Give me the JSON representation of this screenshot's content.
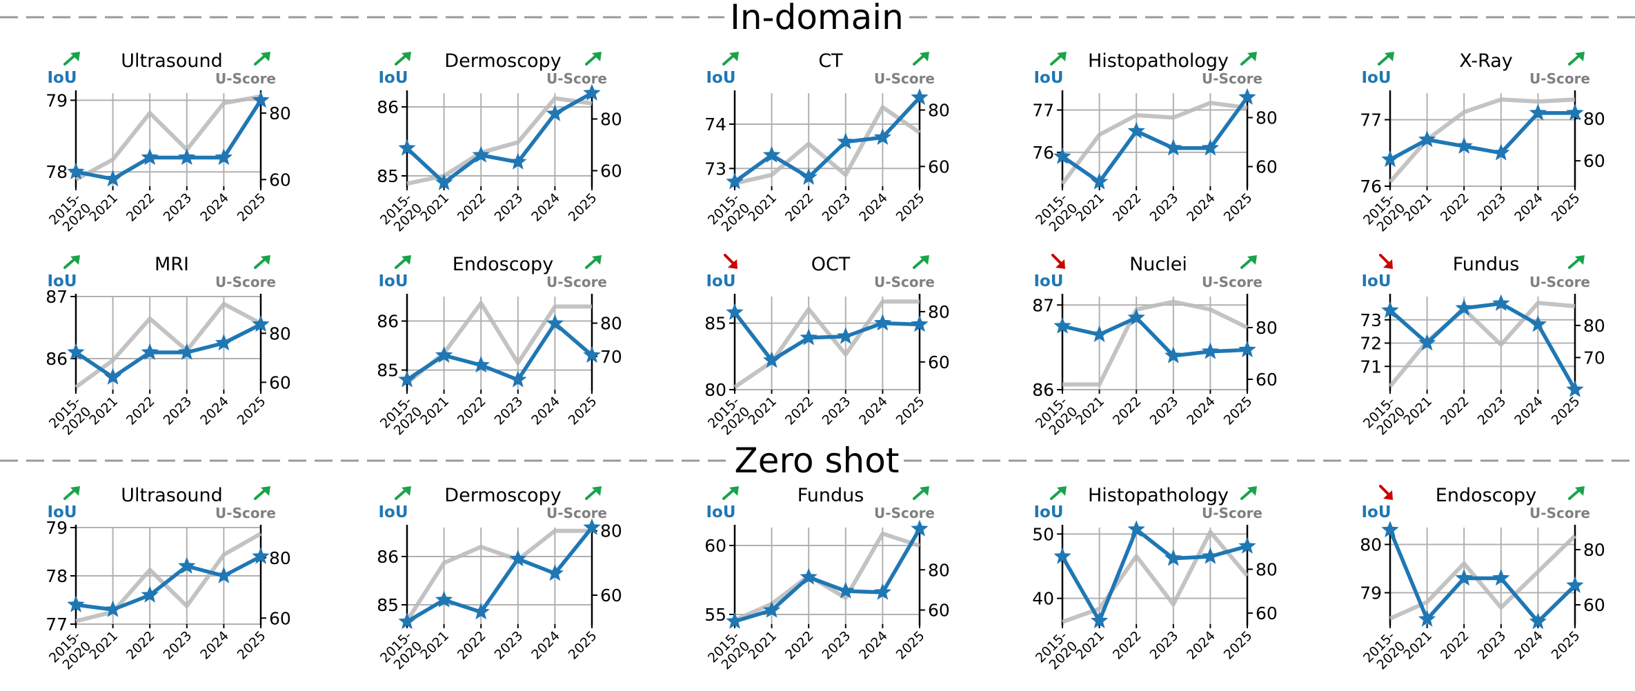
{
  "colors": {
    "iou": "#1f77b4",
    "uscore": "#b9b9b9",
    "up_arrow": "#1aa34a",
    "down_arrow": "#cc0000",
    "grid": "#b0b0b0",
    "divider": "#999999"
  },
  "sections": [
    {
      "title": "In-domain"
    },
    {
      "title": "Zero shot"
    }
  ],
  "chart_data": [
    {
      "type": "line",
      "section": "In-domain",
      "title": "Ultrasound",
      "left_label": "IoU",
      "right_label": "U-Score",
      "iou_trend": "up",
      "uscore_trend": "up",
      "categories": [
        "2015-\n2020",
        "2021",
        "2022",
        "2023",
        "2024",
        "2025"
      ],
      "series": [
        {
          "name": "IoU",
          "axis": "left",
          "values": [
            78.0,
            77.9,
            78.2,
            78.2,
            78.2,
            79.0
          ]
        },
        {
          "name": "U-Score",
          "axis": "right",
          "values": [
            60,
            66,
            80,
            69,
            83,
            85
          ]
        }
      ],
      "ylim_left": [
        77.8,
        79.1
      ],
      "yticks_left": [
        78,
        79
      ],
      "ylim_right": [
        58,
        86
      ],
      "yticks_right": [
        60,
        80
      ]
    },
    {
      "type": "line",
      "section": "In-domain",
      "title": "Dermoscopy",
      "left_label": "IoU",
      "right_label": "U-Score",
      "iou_trend": "up",
      "uscore_trend": "up",
      "categories": [
        "2015-\n2020",
        "2021",
        "2022",
        "2023",
        "2024",
        "2025"
      ],
      "series": [
        {
          "name": "IoU",
          "axis": "left",
          "values": [
            85.4,
            84.9,
            85.3,
            85.2,
            85.9,
            86.2
          ]
        },
        {
          "name": "U-Score",
          "axis": "right",
          "values": [
            55,
            58,
            67,
            71,
            88,
            86
          ]
        }
      ],
      "ylim_left": [
        84.85,
        86.2
      ],
      "yticks_left": [
        85,
        86
      ],
      "ylim_right": [
        54,
        90
      ],
      "yticks_right": [
        60,
        80
      ]
    },
    {
      "type": "line",
      "section": "In-domain",
      "title": "CT",
      "left_label": "IoU",
      "right_label": "U-Score",
      "iou_trend": "up",
      "uscore_trend": "up",
      "categories": [
        "2015-\n2020",
        "2021",
        "2022",
        "2023",
        "2024",
        "2025"
      ],
      "series": [
        {
          "name": "IoU",
          "axis": "left",
          "values": [
            72.7,
            73.3,
            72.8,
            73.6,
            73.7,
            74.6
          ]
        },
        {
          "name": "U-Score",
          "axis": "right",
          "values": [
            54,
            57,
            68,
            57,
            81,
            72
          ]
        }
      ],
      "ylim_left": [
        72.6,
        74.7
      ],
      "yticks_left": [
        73,
        74
      ],
      "ylim_right": [
        53,
        86
      ],
      "yticks_right": [
        60,
        80
      ]
    },
    {
      "type": "line",
      "section": "In-domain",
      "title": "Histopathology",
      "left_label": "IoU",
      "right_label": "U-Score",
      "iou_trend": "up",
      "uscore_trend": "up",
      "categories": [
        "2015-\n2020",
        "2021",
        "2022",
        "2023",
        "2024",
        "2025"
      ],
      "series": [
        {
          "name": "IoU",
          "axis": "left",
          "values": [
            75.9,
            75.3,
            76.5,
            76.1,
            76.1,
            77.3
          ]
        },
        {
          "name": "U-Score",
          "axis": "right",
          "values": [
            53,
            73,
            81,
            80,
            86,
            84
          ]
        }
      ],
      "ylim_left": [
        75.2,
        77.4
      ],
      "yticks_left": [
        76,
        77
      ],
      "ylim_right": [
        52,
        90
      ],
      "yticks_right": [
        60,
        80
      ]
    },
    {
      "type": "line",
      "section": "In-domain",
      "title": "X-Ray",
      "left_label": "IoU",
      "right_label": "U-Score",
      "iou_trend": "up",
      "uscore_trend": "up",
      "categories": [
        "2015-\n2020",
        "2021",
        "2022",
        "2023",
        "2024",
        "2025"
      ],
      "series": [
        {
          "name": "IoU",
          "axis": "left",
          "values": [
            76.4,
            76.7,
            76.6,
            76.5,
            77.1,
            77.1
          ]
        },
        {
          "name": "U-Score",
          "axis": "right",
          "values": [
            50,
            70,
            83,
            89,
            88,
            89
          ]
        }
      ],
      "ylim_left": [
        76,
        77.4
      ],
      "yticks_left": [
        76,
        77
      ],
      "ylim_right": [
        48,
        92
      ],
      "yticks_right": [
        60,
        80
      ]
    },
    {
      "type": "line",
      "section": "In-domain",
      "title": "MRI",
      "left_label": "IoU",
      "right_label": "U-Score",
      "iou_trend": "up",
      "uscore_trend": "up",
      "categories": [
        "2015-\n2020",
        "2021",
        "2022",
        "2023",
        "2024",
        "2025"
      ],
      "series": [
        {
          "name": "IoU",
          "axis": "left",
          "values": [
            86.1,
            85.7,
            86.1,
            86.1,
            86.25,
            86.55
          ]
        },
        {
          "name": "U-Score",
          "axis": "right",
          "values": [
            58,
            69,
            86,
            73,
            92,
            84
          ]
        }
      ],
      "ylim_left": [
        85.5,
        87
      ],
      "yticks_left": [
        86,
        87
      ],
      "ylim_right": [
        57,
        95
      ],
      "yticks_right": [
        60,
        80
      ]
    },
    {
      "type": "line",
      "section": "In-domain",
      "title": "Endoscopy",
      "left_label": "IoU",
      "right_label": "U-Score",
      "iou_trend": "up",
      "uscore_trend": "up",
      "categories": [
        "2015-\n2020",
        "2021",
        "2022",
        "2023",
        "2024",
        "2025"
      ],
      "series": [
        {
          "name": "IoU",
          "axis": "left",
          "values": [
            84.8,
            85.3,
            85.1,
            84.8,
            85.95,
            85.3
          ]
        },
        {
          "name": "U-Score",
          "axis": "right",
          "values": [
            62,
            71,
            86,
            68,
            85,
            85
          ]
        }
      ],
      "ylim_left": [
        84.6,
        86.5
      ],
      "yticks_left": [
        85,
        86
      ],
      "ylim_right": [
        60,
        88
      ],
      "yticks_right": [
        70,
        80
      ]
    },
    {
      "type": "line",
      "section": "In-domain",
      "title": "OCT",
      "left_label": "IoU",
      "right_label": "U-Score",
      "iou_trend": "down",
      "uscore_trend": "up",
      "categories": [
        "2015-\n2020",
        "2021",
        "2022",
        "2023",
        "2024",
        "2025"
      ],
      "series": [
        {
          "name": "IoU",
          "axis": "left",
          "values": [
            85.8,
            82.2,
            83.9,
            84.0,
            85.0,
            84.9
          ]
        },
        {
          "name": "U-Score",
          "axis": "right",
          "values": [
            50,
            60,
            81,
            63,
            84,
            84
          ]
        }
      ],
      "ylim_left": [
        80,
        87
      ],
      "yticks_left": [
        80,
        85
      ],
      "ylim_right": [
        49,
        86
      ],
      "yticks_right": [
        60,
        80
      ]
    },
    {
      "type": "line",
      "section": "In-domain",
      "title": "Nuclei",
      "left_label": "IoU",
      "right_label": "U-Score",
      "iou_trend": "down",
      "uscore_trend": "up",
      "categories": [
        "2015-\n2020",
        "2021",
        "2022",
        "2023",
        "2024",
        "2025"
      ],
      "series": [
        {
          "name": "IoU",
          "axis": "left",
          "values": [
            86.75,
            86.65,
            86.85,
            86.4,
            86.45,
            86.47
          ]
        },
        {
          "name": "U-Score",
          "axis": "right",
          "values": [
            58,
            58,
            87,
            90,
            87,
            80
          ]
        }
      ],
      "ylim_left": [
        86,
        87.1
      ],
      "yticks_left": [
        86,
        87
      ],
      "ylim_right": [
        56,
        92
      ],
      "yticks_right": [
        60,
        80
      ]
    },
    {
      "type": "line",
      "section": "In-domain",
      "title": "Fundus",
      "left_label": "IoU",
      "right_label": "U-Score",
      "iou_trend": "down",
      "uscore_trend": "up",
      "categories": [
        "2015-\n2020",
        "2021",
        "2022",
        "2023",
        "2024",
        "2025"
      ],
      "series": [
        {
          "name": "IoU",
          "axis": "left",
          "values": [
            73.4,
            72.0,
            73.5,
            73.7,
            72.8,
            70.0
          ]
        },
        {
          "name": "U-Score",
          "axis": "right",
          "values": [
            61,
            75,
            85,
            74,
            87,
            86
          ]
        }
      ],
      "ylim_left": [
        70,
        74.0
      ],
      "yticks_left": [
        71,
        72,
        73
      ],
      "ylim_right": [
        60,
        89
      ],
      "yticks_right": [
        70,
        80
      ]
    },
    {
      "type": "line",
      "section": "Zero shot",
      "title": "Ultrasound",
      "left_label": "IoU",
      "right_label": "U-Score",
      "iou_trend": "up",
      "uscore_trend": "up",
      "categories": [
        "2015-\n2020",
        "2021",
        "2022",
        "2023",
        "2024",
        "2025"
      ],
      "series": [
        {
          "name": "IoU",
          "axis": "left",
          "values": [
            77.4,
            77.3,
            77.6,
            78.2,
            78.0,
            78.4
          ]
        },
        {
          "name": "U-Score",
          "axis": "right",
          "values": [
            59,
            62,
            76,
            64,
            81,
            88
          ]
        }
      ],
      "ylim_left": [
        77.0,
        79.0
      ],
      "yticks_left": [
        77,
        78,
        79
      ],
      "ylim_right": [
        58,
        90
      ],
      "yticks_right": [
        60,
        80
      ]
    },
    {
      "type": "line",
      "section": "Zero shot",
      "title": "Dermoscopy",
      "left_label": "IoU",
      "right_label": "U-Score",
      "iou_trend": "up",
      "uscore_trend": "up",
      "categories": [
        "2015-\n2020",
        "2021",
        "2022",
        "2023",
        "2024",
        "2025"
      ],
      "series": [
        {
          "name": "IoU",
          "axis": "left",
          "values": [
            84.65,
            85.1,
            84.85,
            85.95,
            85.65,
            86.6
          ]
        },
        {
          "name": "U-Score",
          "axis": "right",
          "values": [
            52,
            70,
            75,
            71,
            80,
            80
          ]
        }
      ],
      "ylim_left": [
        84.6,
        86.6
      ],
      "yticks_left": [
        85,
        86
      ],
      "ylim_right": [
        51,
        81
      ],
      "yticks_right": [
        60,
        80
      ]
    },
    {
      "type": "line",
      "section": "Zero shot",
      "title": "Fundus",
      "left_label": "IoU",
      "right_label": "U-Score",
      "iou_trend": "up",
      "uscore_trend": "up",
      "categories": [
        "2015-\n2020",
        "2021",
        "2022",
        "2023",
        "2024",
        "2025"
      ],
      "series": [
        {
          "name": "IoU",
          "axis": "left",
          "values": [
            54.5,
            55.3,
            57.7,
            56.7,
            56.6,
            61.2
          ]
        },
        {
          "name": "U-Score",
          "axis": "right",
          "values": [
            55,
            63,
            77,
            66,
            98,
            92
          ]
        }
      ],
      "ylim_left": [
        54.3,
        61.3
      ],
      "yticks_left": [
        55,
        60
      ],
      "ylim_right": [
        53,
        101
      ],
      "yticks_right": [
        60,
        80
      ]
    },
    {
      "type": "line",
      "section": "Zero shot",
      "title": "Histopathology",
      "left_label": "IoU",
      "right_label": "U-Score",
      "iou_trend": "up",
      "uscore_trend": "up",
      "categories": [
        "2015-\n2020",
        "2021",
        "2022",
        "2023",
        "2024",
        "2025"
      ],
      "series": [
        {
          "name": "IoU",
          "axis": "left",
          "values": [
            46.5,
            36.5,
            50.7,
            46.2,
            46.5,
            48.1
          ]
        },
        {
          "name": "U-Score",
          "axis": "right",
          "values": [
            56,
            62,
            86,
            64,
            97,
            77
          ]
        }
      ],
      "ylim_left": [
        36,
        51
      ],
      "yticks_left": [
        40,
        50
      ],
      "ylim_right": [
        55,
        99
      ],
      "yticks_right": [
        60,
        80
      ]
    },
    {
      "type": "line",
      "section": "Zero shot",
      "title": "Endoscopy",
      "left_label": "IoU",
      "right_label": "U-Score",
      "iou_trend": "down",
      "uscore_trend": "up",
      "categories": [
        "2015-\n2020",
        "2021",
        "2022",
        "2023",
        "2024",
        "2025"
      ],
      "series": [
        {
          "name": "IoU",
          "axis": "left",
          "values": [
            80.3,
            78.45,
            79.3,
            79.3,
            78.4,
            79.15
          ]
        },
        {
          "name": "U-Score",
          "axis": "right",
          "values": [
            55,
            61,
            75,
            59,
            72,
            85
          ]
        }
      ],
      "ylim_left": [
        78.35,
        80.35
      ],
      "yticks_left": [
        79,
        80
      ],
      "ylim_right": [
        53,
        88
      ],
      "yticks_right": [
        60,
        80
      ]
    }
  ]
}
